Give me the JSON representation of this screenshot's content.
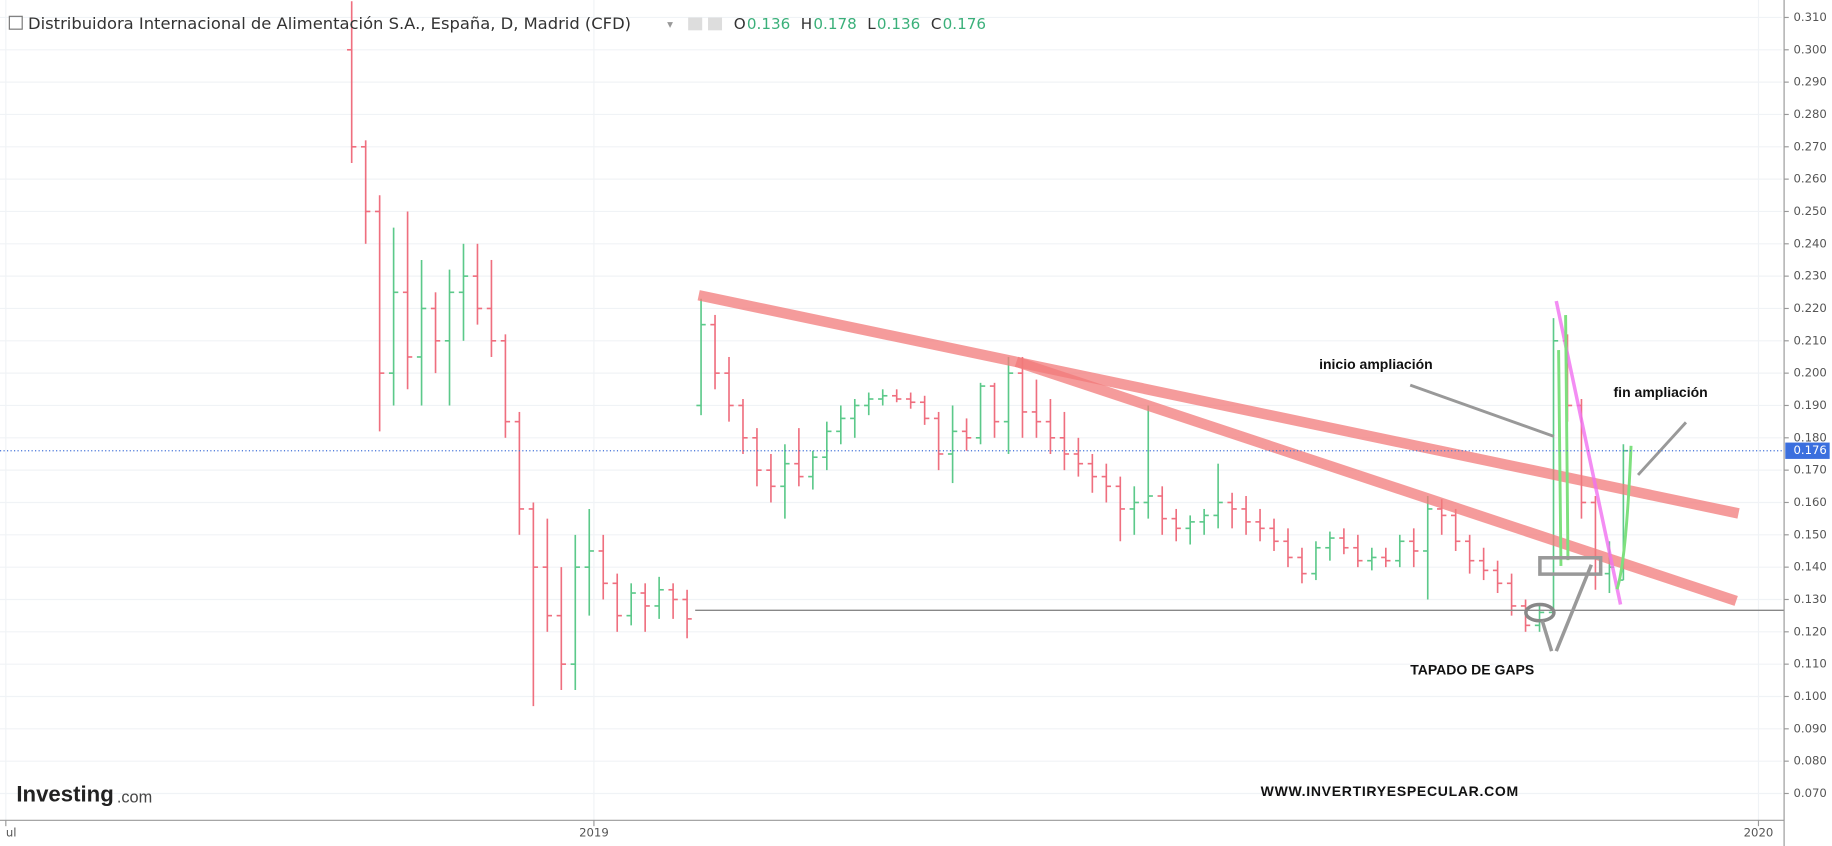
{
  "chart_data": {
    "type": "ohlc",
    "title": "Distribuidora Internacional de Alimentación S.A., España, D, Madrid (CFD)",
    "legend_items": [
      {
        "label": "O",
        "value": 0.136
      },
      {
        "label": "H",
        "value": 0.178
      },
      {
        "label": "L",
        "value": 0.136
      },
      {
        "label": "C",
        "value": 0.176
      }
    ],
    "last_price": 0.176,
    "up_color": "#5cc98a",
    "down_color": "#ef6f7f",
    "grid": true,
    "xlim": [
      2018.49,
      2020.02
    ],
    "xticks": [
      {
        "value": 2018.495,
        "label": "ul"
      },
      2019,
      2020
    ],
    "ylim": [
      0.0617,
      0.3154
    ],
    "yticks": [
      {
        "value": 0.07,
        "label": "0.070"
      },
      {
        "value": 0.08,
        "label": "0.080"
      },
      {
        "value": 0.09,
        "label": "0.090"
      },
      {
        "value": 0.1,
        "label": "0.100"
      },
      {
        "value": 0.11,
        "label": "0.110"
      },
      {
        "value": 0.12,
        "label": "0.120"
      },
      {
        "value": 0.13,
        "label": "0.130"
      },
      {
        "value": 0.14,
        "label": "0.140"
      },
      {
        "value": 0.15,
        "label": "0.150"
      },
      {
        "value": 0.16,
        "label": "0.160"
      },
      {
        "value": 0.17,
        "label": "0.170"
      },
      {
        "value": 0.18,
        "label": "0.180"
      },
      {
        "value": 0.19,
        "label": "0.190"
      },
      {
        "value": 0.2,
        "label": "0.200"
      },
      {
        "value": 0.21,
        "label": "0.210"
      },
      {
        "value": 0.22,
        "label": "0.220"
      },
      {
        "value": 0.23,
        "label": "0.230"
      },
      {
        "value": 0.24,
        "label": "0.240"
      },
      {
        "value": 0.25,
        "label": "0.250"
      },
      {
        "value": 0.26,
        "label": "0.260"
      },
      {
        "value": 0.27,
        "label": "0.270"
      },
      {
        "value": 0.28,
        "label": "0.280"
      },
      {
        "value": 0.29,
        "label": "0.290"
      },
      {
        "value": 0.3,
        "label": "0.300"
      },
      {
        "value": 0.31,
        "label": "0.310"
      }
    ],
    "x": [
      2018.792,
      2018.804,
      2018.816,
      2018.828,
      2018.84,
      2018.852,
      2018.864,
      2018.876,
      2018.888,
      2018.9,
      2018.912,
      2018.924,
      2018.936,
      2018.948,
      2018.96,
      2018.972,
      2018.984,
      2018.996,
      2019.008,
      2019.02,
      2019.032,
      2019.044,
      2019.056,
      2019.068,
      2019.08,
      2019.092,
      2019.104,
      2019.116,
      2019.128,
      2019.14,
      2019.152,
      2019.164,
      2019.176,
      2019.188,
      2019.2,
      2019.212,
      2019.224,
      2019.236,
      2019.248,
      2019.26,
      2019.272,
      2019.284,
      2019.296,
      2019.308,
      2019.32,
      2019.332,
      2019.344,
      2019.356,
      2019.368,
      2019.38,
      2019.392,
      2019.404,
      2019.416,
      2019.428,
      2019.44,
      2019.452,
      2019.464,
      2019.476,
      2019.488,
      2019.5,
      2019.512,
      2019.524,
      2019.536,
      2019.548,
      2019.56,
      2019.572,
      2019.584,
      2019.596,
      2019.608,
      2019.62,
      2019.632,
      2019.644,
      2019.656,
      2019.668,
      2019.68,
      2019.692,
      2019.704,
      2019.716,
      2019.728,
      2019.74,
      2019.752,
      2019.764,
      2019.776,
      2019.788,
      2019.8,
      2019.812,
      2019.824,
      2019.836,
      2019.848,
      2019.86,
      2019.872,
      2019.884
    ],
    "ohlc": [
      [
        0.3,
        0.315,
        0.265,
        0.27
      ],
      [
        0.27,
        0.272,
        0.24,
        0.25
      ],
      [
        0.25,
        0.255,
        0.182,
        0.2
      ],
      [
        0.2,
        0.245,
        0.19,
        0.225
      ],
      [
        0.225,
        0.25,
        0.195,
        0.205
      ],
      [
        0.205,
        0.235,
        0.19,
        0.22
      ],
      [
        0.22,
        0.225,
        0.2,
        0.21
      ],
      [
        0.21,
        0.232,
        0.19,
        0.225
      ],
      [
        0.225,
        0.24,
        0.21,
        0.23
      ],
      [
        0.23,
        0.24,
        0.215,
        0.22
      ],
      [
        0.22,
        0.235,
        0.205,
        0.21
      ],
      [
        0.21,
        0.212,
        0.18,
        0.185
      ],
      [
        0.185,
        0.188,
        0.15,
        0.158
      ],
      [
        0.158,
        0.16,
        0.097,
        0.14
      ],
      [
        0.14,
        0.155,
        0.12,
        0.125
      ],
      [
        0.125,
        0.14,
        0.102,
        0.11
      ],
      [
        0.11,
        0.15,
        0.102,
        0.14
      ],
      [
        0.14,
        0.158,
        0.125,
        0.145
      ],
      [
        0.145,
        0.15,
        0.13,
        0.135
      ],
      [
        0.135,
        0.138,
        0.12,
        0.125
      ],
      [
        0.125,
        0.135,
        0.122,
        0.132
      ],
      [
        0.132,
        0.135,
        0.12,
        0.128
      ],
      [
        0.128,
        0.137,
        0.124,
        0.133
      ],
      [
        0.133,
        0.135,
        0.124,
        0.13
      ],
      [
        0.13,
        0.133,
        0.118,
        0.124
      ],
      [
        0.19,
        0.223,
        0.187,
        0.215
      ],
      [
        0.215,
        0.218,
        0.195,
        0.2
      ],
      [
        0.2,
        0.205,
        0.185,
        0.19
      ],
      [
        0.19,
        0.192,
        0.175,
        0.18
      ],
      [
        0.18,
        0.183,
        0.165,
        0.17
      ],
      [
        0.17,
        0.175,
        0.16,
        0.165
      ],
      [
        0.165,
        0.178,
        0.155,
        0.172
      ],
      [
        0.172,
        0.183,
        0.165,
        0.168
      ],
      [
        0.168,
        0.176,
        0.164,
        0.174
      ],
      [
        0.174,
        0.185,
        0.17,
        0.182
      ],
      [
        0.182,
        0.19,
        0.178,
        0.186
      ],
      [
        0.186,
        0.192,
        0.18,
        0.19
      ],
      [
        0.19,
        0.194,
        0.187,
        0.192
      ],
      [
        0.192,
        0.195,
        0.19,
        0.193
      ],
      [
        0.193,
        0.195,
        0.191,
        0.192
      ],
      [
        0.192,
        0.194,
        0.189,
        0.191
      ],
      [
        0.191,
        0.193,
        0.184,
        0.186
      ],
      [
        0.186,
        0.188,
        0.17,
        0.175
      ],
      [
        0.175,
        0.19,
        0.166,
        0.182
      ],
      [
        0.182,
        0.186,
        0.176,
        0.18
      ],
      [
        0.18,
        0.197,
        0.178,
        0.196
      ],
      [
        0.196,
        0.197,
        0.18,
        0.185
      ],
      [
        0.185,
        0.205,
        0.175,
        0.2
      ],
      [
        0.2,
        0.205,
        0.18,
        0.188
      ],
      [
        0.188,
        0.198,
        0.18,
        0.185
      ],
      [
        0.185,
        0.192,
        0.175,
        0.18
      ],
      [
        0.18,
        0.188,
        0.17,
        0.175
      ],
      [
        0.175,
        0.18,
        0.168,
        0.172
      ],
      [
        0.172,
        0.175,
        0.163,
        0.168
      ],
      [
        0.168,
        0.172,
        0.16,
        0.165
      ],
      [
        0.165,
        0.168,
        0.148,
        0.158
      ],
      [
        0.158,
        0.165,
        0.15,
        0.16
      ],
      [
        0.16,
        0.19,
        0.155,
        0.162
      ],
      [
        0.162,
        0.165,
        0.15,
        0.155
      ],
      [
        0.155,
        0.158,
        0.148,
        0.152
      ],
      [
        0.152,
        0.156,
        0.147,
        0.154
      ],
      [
        0.154,
        0.158,
        0.15,
        0.156
      ],
      [
        0.156,
        0.172,
        0.152,
        0.16
      ],
      [
        0.16,
        0.163,
        0.152,
        0.158
      ],
      [
        0.158,
        0.162,
        0.15,
        0.154
      ],
      [
        0.154,
        0.158,
        0.148,
        0.152
      ],
      [
        0.152,
        0.155,
        0.145,
        0.148
      ],
      [
        0.148,
        0.152,
        0.14,
        0.143
      ],
      [
        0.143,
        0.146,
        0.135,
        0.138
      ],
      [
        0.138,
        0.148,
        0.136,
        0.146
      ],
      [
        0.146,
        0.151,
        0.142,
        0.149
      ],
      [
        0.149,
        0.152,
        0.144,
        0.146
      ],
      [
        0.146,
        0.15,
        0.14,
        0.142
      ],
      [
        0.142,
        0.146,
        0.139,
        0.143
      ],
      [
        0.143,
        0.146,
        0.14,
        0.142
      ],
      [
        0.142,
        0.15,
        0.14,
        0.148
      ],
      [
        0.148,
        0.152,
        0.14,
        0.145
      ],
      [
        0.145,
        0.162,
        0.13,
        0.158
      ],
      [
        0.158,
        0.161,
        0.15,
        0.156
      ],
      [
        0.156,
        0.158,
        0.145,
        0.148
      ],
      [
        0.148,
        0.15,
        0.138,
        0.142
      ],
      [
        0.142,
        0.146,
        0.136,
        0.139
      ],
      [
        0.139,
        0.142,
        0.132,
        0.135
      ],
      [
        0.135,
        0.138,
        0.125,
        0.128
      ],
      [
        0.128,
        0.13,
        0.12,
        0.122
      ],
      [
        0.122,
        0.128,
        0.12,
        0.126
      ],
      [
        0.126,
        0.217,
        0.125,
        0.21
      ],
      [
        0.21,
        0.212,
        0.185,
        0.19
      ],
      [
        0.19,
        0.192,
        0.155,
        0.16
      ],
      [
        0.16,
        0.162,
        0.133,
        0.138
      ],
      [
        0.138,
        0.148,
        0.132,
        0.14
      ],
      [
        0.136,
        0.178,
        0.136,
        0.176
      ]
    ],
    "annotations": [
      "inicio ampliación",
      "fin ampliación",
      "TAPADO DE GAPS"
    ],
    "watermark": "WWW.INVERTIRYESPECULAR.COM",
    "logo": [
      "Investing",
      ".com"
    ]
  }
}
